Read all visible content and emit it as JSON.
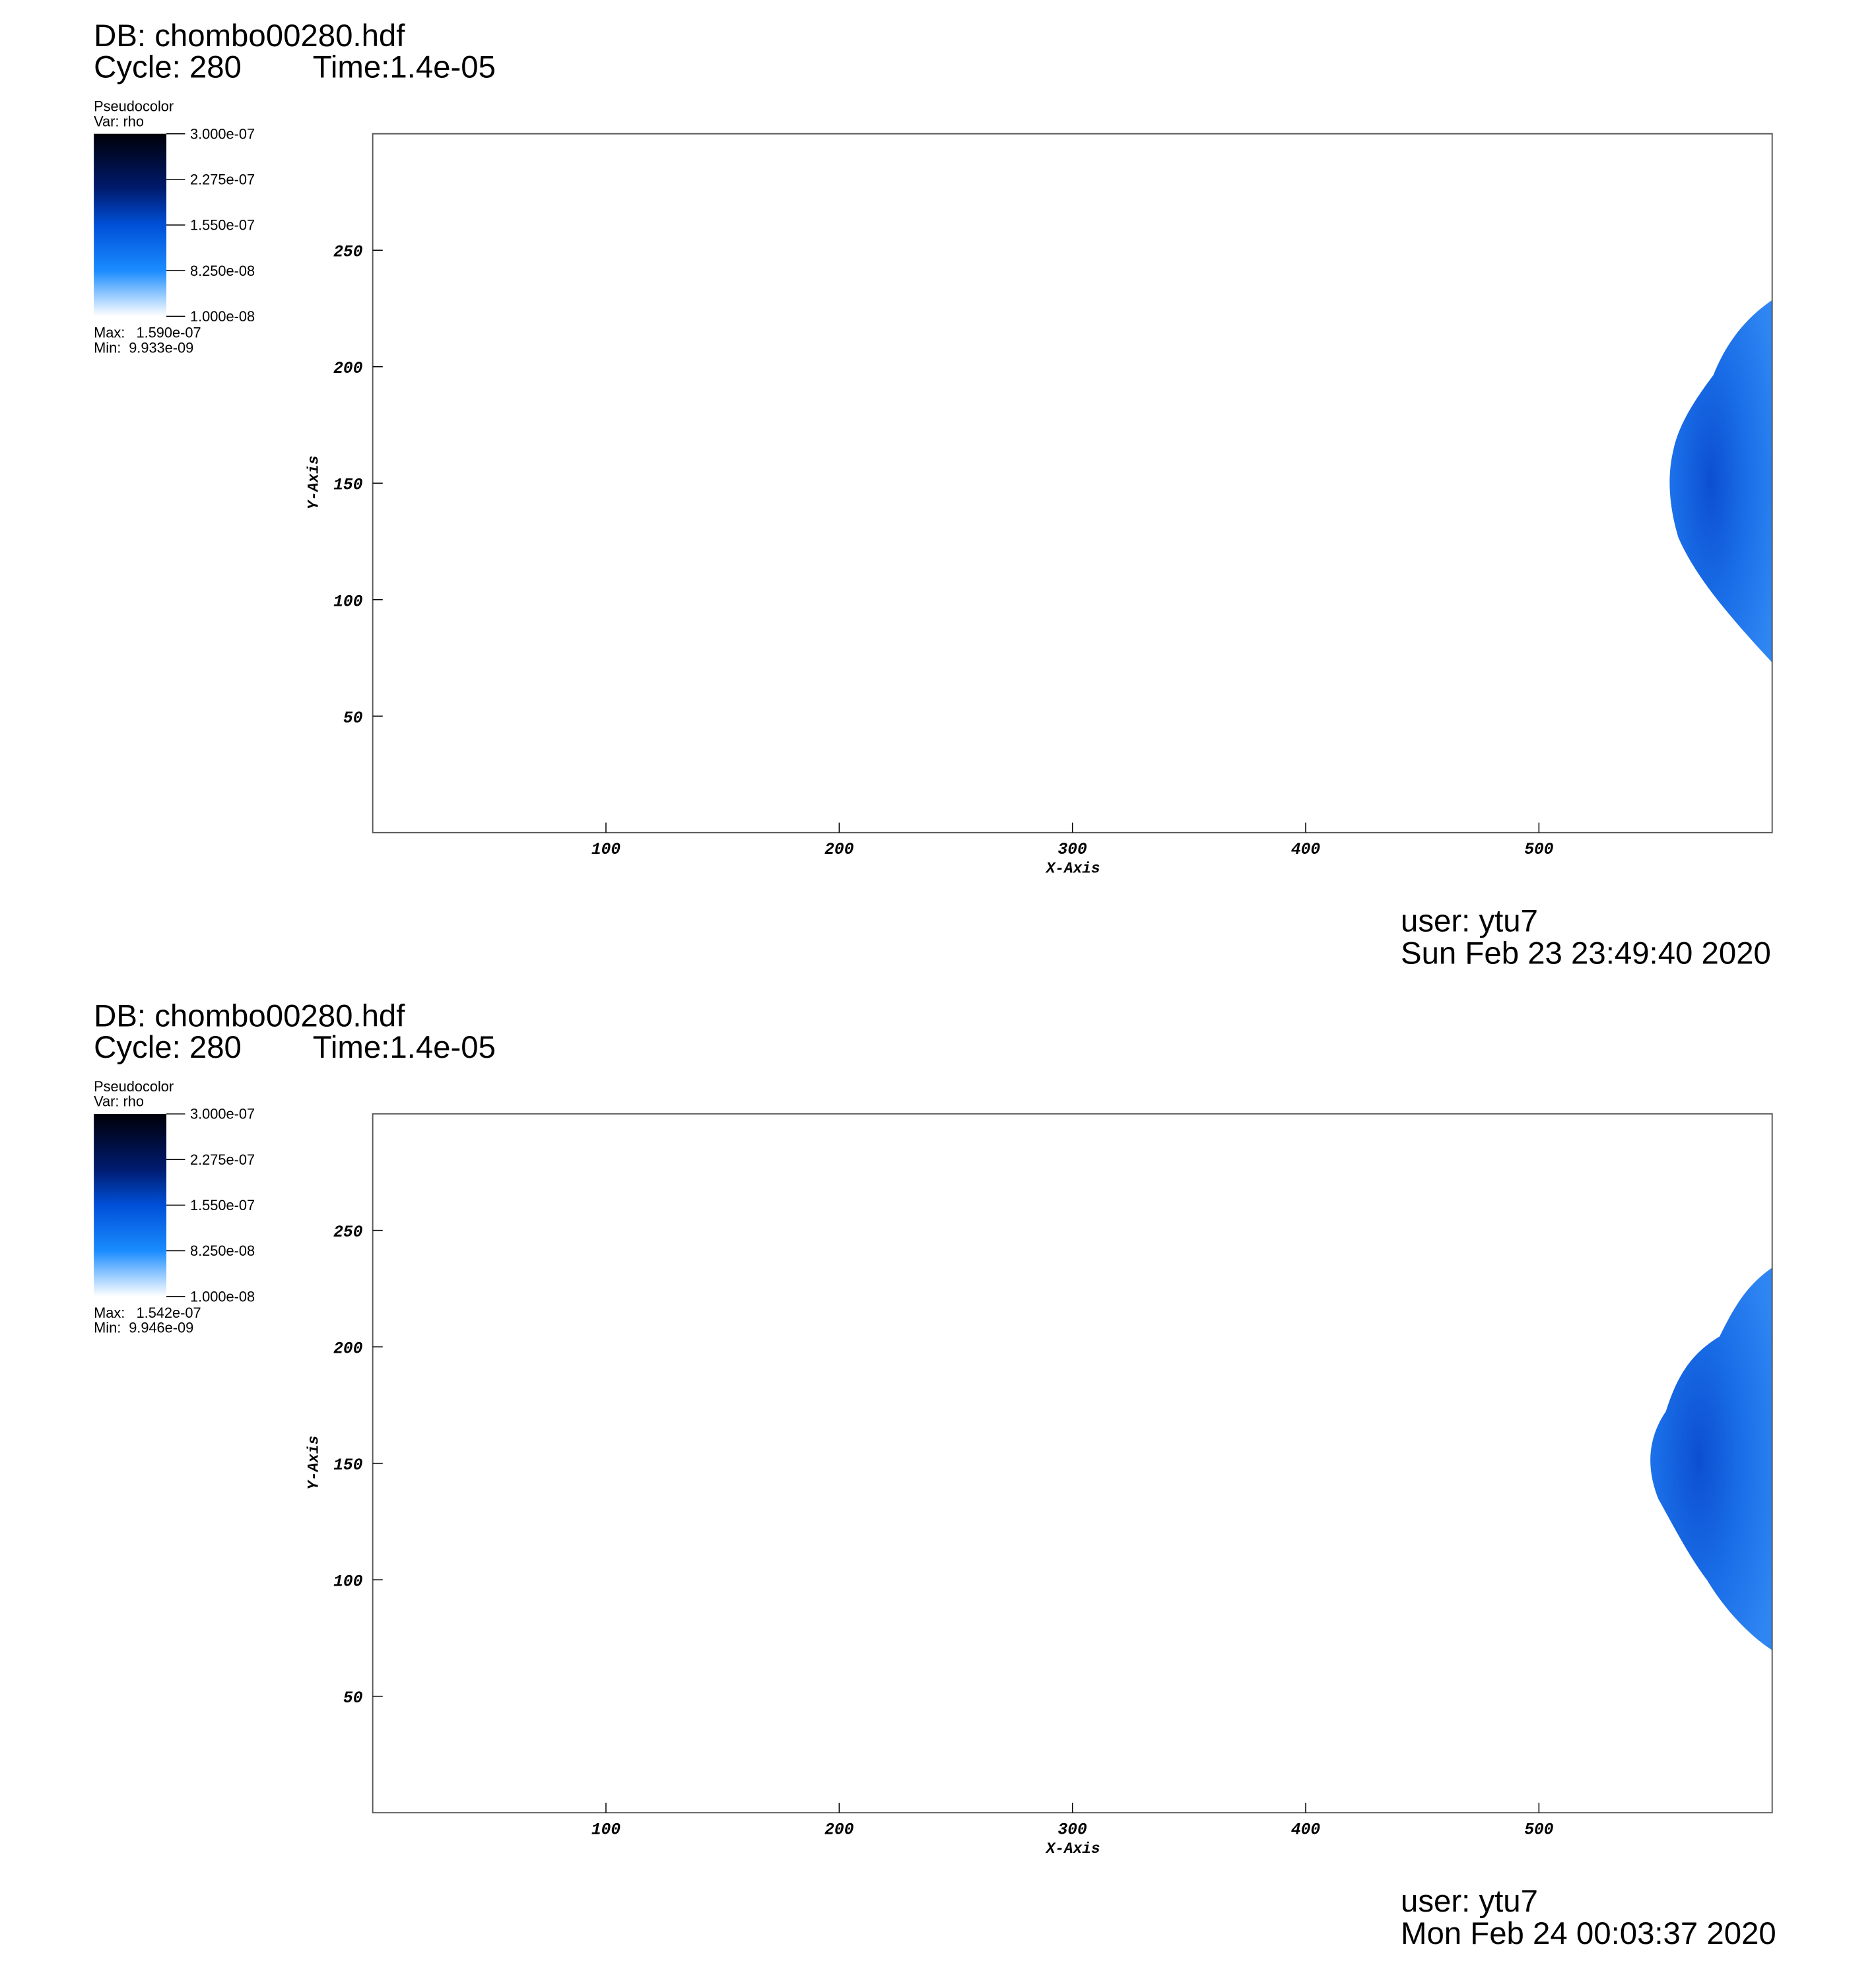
{
  "chart_data": [
    {
      "type": "pseudocolor",
      "title": "DB: chombo00280.hdf",
      "cycle": "Cycle: 280",
      "time": "Time:1.4e-05",
      "legend_title": "Pseudocolor",
      "variable": "Var: rho",
      "clim": [
        1e-08,
        3e-07
      ],
      "cticks": [
        {
          "value": 3e-07,
          "label": "3.000e-07"
        },
        {
          "value": 2.275e-07,
          "label": "2.275e-07"
        },
        {
          "value": 1.55e-07,
          "label": "1.550e-07"
        },
        {
          "value": 8.25e-08,
          "label": "8.250e-08"
        },
        {
          "value": 1e-08,
          "label": "1.000e-08"
        }
      ],
      "max_label": "Max:",
      "max": "1.590e-07",
      "min_label": "Min:",
      "min": "9.933e-09",
      "xlabel": "X-Axis",
      "ylabel": "Y-Axis",
      "xlim": [
        0,
        600
      ],
      "ylim": [
        0,
        300
      ],
      "xticks": [
        100,
        200,
        300,
        400,
        500
      ],
      "yticks": [
        50,
        100,
        150,
        200,
        250
      ],
      "user": "user: ytu7",
      "date": "Sun Feb 23 23:49:40 2020"
    },
    {
      "type": "pseudocolor",
      "title": "DB: chombo00280.hdf",
      "cycle": "Cycle: 280",
      "time": "Time:1.4e-05",
      "legend_title": "Pseudocolor",
      "variable": "Var: rho",
      "clim": [
        1e-08,
        3e-07
      ],
      "cticks": [
        {
          "value": 3e-07,
          "label": "3.000e-07"
        },
        {
          "value": 2.275e-07,
          "label": "2.275e-07"
        },
        {
          "value": 1.55e-07,
          "label": "1.550e-07"
        },
        {
          "value": 8.25e-08,
          "label": "8.250e-08"
        },
        {
          "value": 1e-08,
          "label": "1.000e-08"
        }
      ],
      "max_label": "Max:",
      "max": "1.542e-07",
      "min_label": "Min:",
      "min": "9.946e-09",
      "xlabel": "X-Axis",
      "ylabel": "Y-Axis",
      "xlim": [
        0,
        600
      ],
      "ylim": [
        0,
        300
      ],
      "xticks": [
        100,
        200,
        300,
        400,
        500
      ],
      "yticks": [
        50,
        100,
        150,
        200,
        250
      ],
      "user": "user: ytu7",
      "date": "Mon Feb 24 00:03:37 2020"
    }
  ]
}
